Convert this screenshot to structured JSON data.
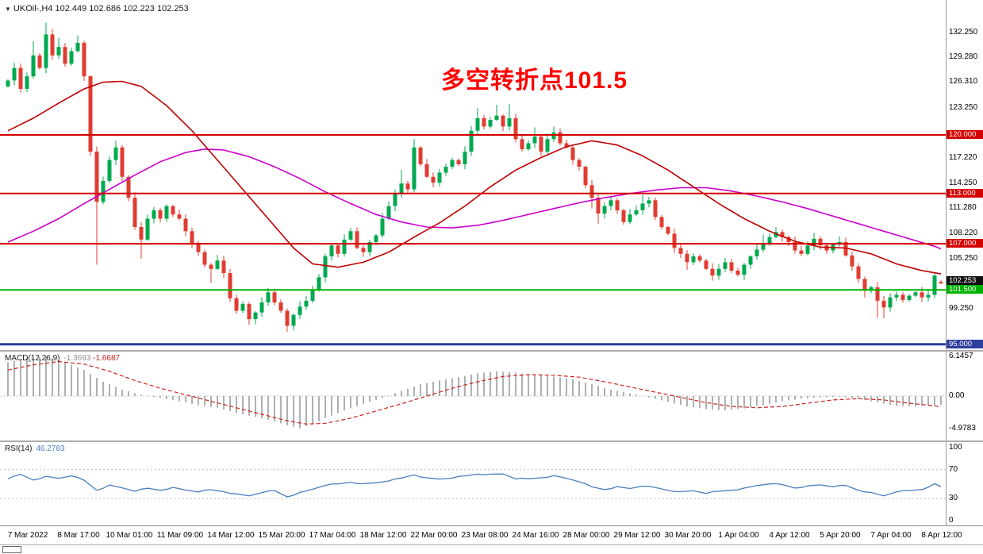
{
  "colors": {
    "up": "#00a94f",
    "down": "#e03c31",
    "ma_red": "#c00000",
    "ma_magenta": "#cc00cc",
    "macd_hist": "#b0b0b0",
    "macd_signal": "#cc2222",
    "rsi_line": "#4a7ebf",
    "rsi_value": "#4a7ebf",
    "macd_value_main": "#909090",
    "macd_value_signal": "#cc2222",
    "annotation": "#ff0000"
  },
  "icons": {
    "chart_menu": "▼"
  },
  "chart_data": [
    {
      "type": "candlestick",
      "symbol": "UKOil-",
      "timeframe": "H4",
      "title_text": "UKOil-,H4 102.449 102.686 102.223 102.253",
      "annotation": "多空转折点101.5",
      "annotation_value": 101.5,
      "last_ohlc": {
        "open": 102.449,
        "high": 102.686,
        "low": 102.223,
        "close": 102.253
      },
      "ylim": [
        95.0,
        133.4
      ],
      "x_labels": [
        "7 Mar 2022",
        "8 Mar 17:00",
        "10 Mar 01:00",
        "11 Mar 09:00",
        "14 Mar 12:00",
        "15 Mar 20:00",
        "17 Mar 04:00",
        "18 Mar 12:00",
        "22 Mar 00:00",
        "23 Mar 08:00",
        "24 Mar 16:00",
        "28 Mar 00:00",
        "29 Mar 12:00",
        "30 Mar 20:00",
        "1 Apr 04:00",
        "4 Apr 12:00",
        "5 Apr 20:00",
        "7 Apr 04:00",
        "8 Apr 12:00"
      ],
      "first_open": 125.8,
      "closes": [
        126.5,
        128.0,
        125.5,
        127.0,
        129.5,
        128.0,
        132.0,
        129.5,
        130.5,
        128.5,
        130.0,
        131.0,
        127.0,
        118.0,
        112.0,
        114.5,
        117.0,
        118.5,
        115.0,
        112.5,
        109.0,
        107.5,
        110.0,
        111.0,
        110.0,
        111.5,
        110.5,
        110.0,
        108.5,
        107.0,
        106.0,
        104.5,
        104.0,
        105.0,
        103.5,
        100.5,
        99.0,
        99.8,
        98.0,
        98.8,
        100.0,
        101.2,
        100.0,
        99.0,
        97.2,
        98.5,
        99.5,
        100.2,
        101.5,
        103.0,
        105.5,
        106.8,
        105.8,
        107.5,
        108.5,
        106.5,
        106.0,
        107.2,
        108.0,
        110.0,
        111.5,
        113.0,
        114.2,
        113.5,
        118.5,
        116.5,
        115.0,
        114.3,
        115.5,
        116.2,
        117.0,
        116.5,
        118.0,
        120.5,
        122.0,
        121.0,
        121.8,
        122.3,
        121.0,
        122.0,
        119.5,
        118.3,
        119.0,
        119.8,
        118.0,
        119.5,
        120.3,
        119.0,
        118.5,
        117.0,
        116.2,
        114.0,
        112.5,
        110.6,
        111.5,
        112.2,
        111.0,
        109.6,
        110.5,
        111.0,
        111.8,
        112.2,
        110.2,
        109.0,
        108.2,
        106.5,
        105.8,
        104.8,
        105.5,
        105.0,
        104.0,
        103.2,
        104.0,
        104.8,
        103.8,
        103.3,
        104.5,
        105.5,
        106.3,
        107.0,
        107.8,
        108.4,
        107.8,
        107.2,
        106.2,
        105.8,
        106.8,
        107.6,
        106.8,
        106.2,
        106.9,
        107.2,
        105.6,
        104.3,
        102.8,
        101.4,
        101.8,
        100.2,
        99.4,
        100.6,
        100.9,
        100.3,
        100.8,
        101.2,
        100.6,
        100.9,
        103.2,
        102.253
      ],
      "open_overrides": {
        "147": 102.449
      },
      "high_overrides": {
        "4": 131.2,
        "6": 133.4,
        "8": 131.6,
        "11": 131.9,
        "17": 119.3,
        "54": 108.9,
        "62": 115.8,
        "64": 119.5,
        "74": 123.2,
        "77": 123.6,
        "79": 123.7,
        "83": 120.9,
        "86": 121.0,
        "100": 112.8,
        "119": 108.1,
        "121": 109.0,
        "127": 108.3,
        "131": 107.9,
        "146": 103.6,
        "147": 102.686
      },
      "low_overrides": {
        "14": 104.5,
        "21": 105.2,
        "32": 102.3,
        "38": 97.3,
        "44": 96.5,
        "92": 111.2,
        "93": 109.4,
        "107": 103.9,
        "111": 102.6,
        "135": 100.6,
        "137": 98.2,
        "138": 98.1,
        "147": 102.223
      },
      "hlines": [
        {
          "value": 120.0,
          "label": "120.000",
          "color": "#d40000",
          "width": 2
        },
        {
          "value": 113.0,
          "label": "113.000",
          "color": "#d40000",
          "width": 2
        },
        {
          "value": 107.0,
          "label": "107.000",
          "color": "#d40000",
          "width": 2
        },
        {
          "value": 101.5,
          "label": "101.500",
          "color": "#00b200",
          "width": 2
        },
        {
          "value": 95.0,
          "label": "95.000",
          "color": "#2f3f9e",
          "width": 3
        }
      ],
      "price_badge": {
        "value": 102.253,
        "label": "102.253",
        "color": "#111111"
      },
      "y_ticks": [
        {
          "value": 132.25,
          "label": "132.250"
        },
        {
          "value": 129.28,
          "label": "129.280"
        },
        {
          "value": 126.31,
          "label": "126.310"
        },
        {
          "value": 123.25,
          "label": "123.250"
        },
        {
          "value": 117.22,
          "label": "117.220"
        },
        {
          "value": 114.25,
          "label": "114.250"
        },
        {
          "value": 111.28,
          "label": "111.280"
        },
        {
          "value": 108.22,
          "label": "108.220"
        },
        {
          "value": 105.25,
          "label": "105.250"
        },
        {
          "value": 99.25,
          "label": "99.250"
        }
      ],
      "ma_red_keypoints": [
        [
          0,
          120.5
        ],
        [
          4,
          122.0
        ],
        [
          8,
          123.8
        ],
        [
          12,
          125.5
        ],
        [
          15,
          126.3
        ],
        [
          18,
          126.4
        ],
        [
          21,
          125.8
        ],
        [
          25,
          123.5
        ],
        [
          29,
          120.5
        ],
        [
          33,
          117.0
        ],
        [
          37,
          113.5
        ],
        [
          41,
          110.0
        ],
        [
          45,
          106.5
        ],
        [
          48,
          104.6
        ],
        [
          52,
          104.2
        ],
        [
          56,
          104.8
        ],
        [
          60,
          106.0
        ],
        [
          64,
          107.8
        ],
        [
          68,
          109.5
        ],
        [
          72,
          111.5
        ],
        [
          76,
          113.8
        ],
        [
          80,
          115.8
        ],
        [
          84,
          117.3
        ],
        [
          88,
          118.6
        ],
        [
          92,
          119.3
        ],
        [
          96,
          118.8
        ],
        [
          100,
          117.5
        ],
        [
          104,
          115.8
        ],
        [
          108,
          113.8
        ],
        [
          112,
          111.8
        ],
        [
          116,
          110.0
        ],
        [
          120,
          108.5
        ],
        [
          124,
          107.3
        ],
        [
          128,
          106.6
        ],
        [
          132,
          106.5
        ],
        [
          136,
          105.8
        ],
        [
          140,
          104.6
        ],
        [
          144,
          103.8
        ],
        [
          147,
          103.4
        ]
      ],
      "ma_magenta_keypoints": [
        [
          0,
          107.2
        ],
        [
          4,
          108.5
        ],
        [
          8,
          110.0
        ],
        [
          12,
          111.8
        ],
        [
          16,
          113.5
        ],
        [
          20,
          115.2
        ],
        [
          24,
          116.8
        ],
        [
          28,
          117.9
        ],
        [
          31,
          118.3
        ],
        [
          34,
          118.2
        ],
        [
          38,
          117.4
        ],
        [
          42,
          116.2
        ],
        [
          46,
          114.8
        ],
        [
          50,
          113.2
        ],
        [
          54,
          111.8
        ],
        [
          58,
          110.5
        ],
        [
          62,
          109.6
        ],
        [
          66,
          109.0
        ],
        [
          70,
          108.9
        ],
        [
          74,
          109.2
        ],
        [
          78,
          109.8
        ],
        [
          82,
          110.5
        ],
        [
          86,
          111.2
        ],
        [
          90,
          111.9
        ],
        [
          94,
          112.5
        ],
        [
          98,
          113.0
        ],
        [
          102,
          113.4
        ],
        [
          106,
          113.7
        ],
        [
          110,
          113.7
        ],
        [
          114,
          113.3
        ],
        [
          118,
          112.7
        ],
        [
          122,
          112.0
        ],
        [
          126,
          111.2
        ],
        [
          130,
          110.3
        ],
        [
          134,
          109.4
        ],
        [
          138,
          108.5
        ],
        [
          142,
          107.6
        ],
        [
          146,
          106.7
        ],
        [
          147,
          106.4
        ]
      ]
    },
    {
      "type": "macd",
      "label": "MACD(12,26,9)",
      "value_main": "-1.3693",
      "value_signal": "-1.6687",
      "ylim": [
        -4.9783,
        6.1457
      ],
      "axis_ticks": [
        {
          "value": 6.1457,
          "label": "6.1457"
        },
        {
          "value": 0,
          "label": "0.00"
        },
        {
          "value": -4.9783,
          "label": "-4.9783"
        }
      ],
      "hist_keypoints": [
        [
          0,
          5.2
        ],
        [
          3,
          5.8
        ],
        [
          6,
          6.1
        ],
        [
          9,
          5.2
        ],
        [
          12,
          4.0
        ],
        [
          15,
          2.2
        ],
        [
          18,
          1.0
        ],
        [
          21,
          0.2
        ],
        [
          24,
          -0.3
        ],
        [
          27,
          -0.8
        ],
        [
          30,
          -1.4
        ],
        [
          33,
          -1.8
        ],
        [
          36,
          -2.6
        ],
        [
          39,
          -3.2
        ],
        [
          42,
          -3.9
        ],
        [
          44,
          -4.5
        ],
        [
          46,
          -4.95
        ],
        [
          48,
          -4.3
        ],
        [
          50,
          -3.4
        ],
        [
          53,
          -2.2
        ],
        [
          56,
          -1.2
        ],
        [
          59,
          -0.3
        ],
        [
          62,
          0.8
        ],
        [
          65,
          1.8
        ],
        [
          68,
          2.4
        ],
        [
          71,
          2.9
        ],
        [
          74,
          3.5
        ],
        [
          77,
          3.8
        ],
        [
          80,
          3.6
        ],
        [
          83,
          3.2
        ],
        [
          86,
          3.0
        ],
        [
          89,
          2.6
        ],
        [
          92,
          1.8
        ],
        [
          95,
          1.0
        ],
        [
          98,
          0.4
        ],
        [
          101,
          -0.2
        ],
        [
          104,
          -0.9
        ],
        [
          107,
          -1.6
        ],
        [
          110,
          -2.0
        ],
        [
          113,
          -2.2
        ],
        [
          116,
          -1.9
        ],
        [
          119,
          -1.4
        ],
        [
          122,
          -0.8
        ],
        [
          125,
          -0.4
        ],
        [
          128,
          -0.2
        ],
        [
          131,
          -0.1
        ],
        [
          134,
          -0.4
        ],
        [
          137,
          -1.0
        ],
        [
          140,
          -1.5
        ],
        [
          143,
          -1.6
        ],
        [
          145,
          -1.5
        ],
        [
          147,
          -1.37
        ]
      ],
      "signal_keypoints": [
        [
          0,
          4.0
        ],
        [
          4,
          4.8
        ],
        [
          8,
          5.3
        ],
        [
          12,
          4.9
        ],
        [
          16,
          3.8
        ],
        [
          20,
          2.4
        ],
        [
          24,
          1.2
        ],
        [
          28,
          0.2
        ],
        [
          32,
          -0.8
        ],
        [
          36,
          -1.8
        ],
        [
          40,
          -2.8
        ],
        [
          44,
          -3.8
        ],
        [
          47,
          -4.3
        ],
        [
          50,
          -4.2
        ],
        [
          54,
          -3.4
        ],
        [
          58,
          -2.3
        ],
        [
          62,
          -1.2
        ],
        [
          66,
          0.0
        ],
        [
          70,
          1.2
        ],
        [
          74,
          2.2
        ],
        [
          78,
          3.0
        ],
        [
          82,
          3.3
        ],
        [
          86,
          3.2
        ],
        [
          90,
          2.9
        ],
        [
          94,
          2.2
        ],
        [
          98,
          1.4
        ],
        [
          102,
          0.6
        ],
        [
          106,
          -0.2
        ],
        [
          110,
          -1.0
        ],
        [
          114,
          -1.6
        ],
        [
          118,
          -1.8
        ],
        [
          122,
          -1.6
        ],
        [
          126,
          -1.1
        ],
        [
          130,
          -0.6
        ],
        [
          134,
          -0.4
        ],
        [
          138,
          -0.6
        ],
        [
          142,
          -1.1
        ],
        [
          146,
          -1.5
        ],
        [
          147,
          -1.6687
        ]
      ]
    },
    {
      "type": "rsi",
      "label": "RSI(14)",
      "value": "46.2783",
      "ylim": [
        0,
        100
      ],
      "levels": [
        70,
        30
      ],
      "axis_ticks": [
        {
          "value": 100,
          "label": "100"
        },
        {
          "value": 70,
          "label": "70"
        },
        {
          "value": 30,
          "label": "30"
        },
        {
          "value": 0,
          "label": "0"
        }
      ],
      "keypoints": [
        [
          0,
          58
        ],
        [
          2,
          63
        ],
        [
          4,
          56
        ],
        [
          6,
          60
        ],
        [
          8,
          58
        ],
        [
          10,
          62
        ],
        [
          12,
          55
        ],
        [
          14,
          42
        ],
        [
          16,
          48
        ],
        [
          18,
          45
        ],
        [
          20,
          41
        ],
        [
          22,
          44
        ],
        [
          24,
          42
        ],
        [
          26,
          45
        ],
        [
          28,
          42
        ],
        [
          30,
          40
        ],
        [
          32,
          42
        ],
        [
          34,
          40
        ],
        [
          36,
          36
        ],
        [
          38,
          34
        ],
        [
          40,
          39
        ],
        [
          42,
          41
        ],
        [
          44,
          33
        ],
        [
          46,
          38
        ],
        [
          48,
          43
        ],
        [
          50,
          49
        ],
        [
          52,
          50
        ],
        [
          54,
          53
        ],
        [
          56,
          50
        ],
        [
          58,
          52
        ],
        [
          60,
          55
        ],
        [
          62,
          58
        ],
        [
          64,
          63
        ],
        [
          66,
          58
        ],
        [
          68,
          57
        ],
        [
          70,
          59
        ],
        [
          72,
          61
        ],
        [
          74,
          64
        ],
        [
          76,
          63
        ],
        [
          78,
          64
        ],
        [
          80,
          58
        ],
        [
          82,
          57
        ],
        [
          84,
          59
        ],
        [
          86,
          61
        ],
        [
          88,
          58
        ],
        [
          90,
          54
        ],
        [
          92,
          46
        ],
        [
          94,
          43
        ],
        [
          96,
          46
        ],
        [
          98,
          44
        ],
        [
          100,
          48
        ],
        [
          102,
          45
        ],
        [
          104,
          42
        ],
        [
          106,
          39
        ],
        [
          108,
          41
        ],
        [
          110,
          38
        ],
        [
          112,
          40
        ],
        [
          114,
          42
        ],
        [
          116,
          44
        ],
        [
          118,
          48
        ],
        [
          120,
          51
        ],
        [
          122,
          49
        ],
        [
          124,
          45
        ],
        [
          126,
          47
        ],
        [
          128,
          49
        ],
        [
          130,
          47
        ],
        [
          132,
          48
        ],
        [
          134,
          42
        ],
        [
          136,
          38
        ],
        [
          138,
          34
        ],
        [
          140,
          40
        ],
        [
          142,
          41
        ],
        [
          144,
          43
        ],
        [
          146,
          50
        ],
        [
          147,
          46.3
        ]
      ]
    }
  ]
}
